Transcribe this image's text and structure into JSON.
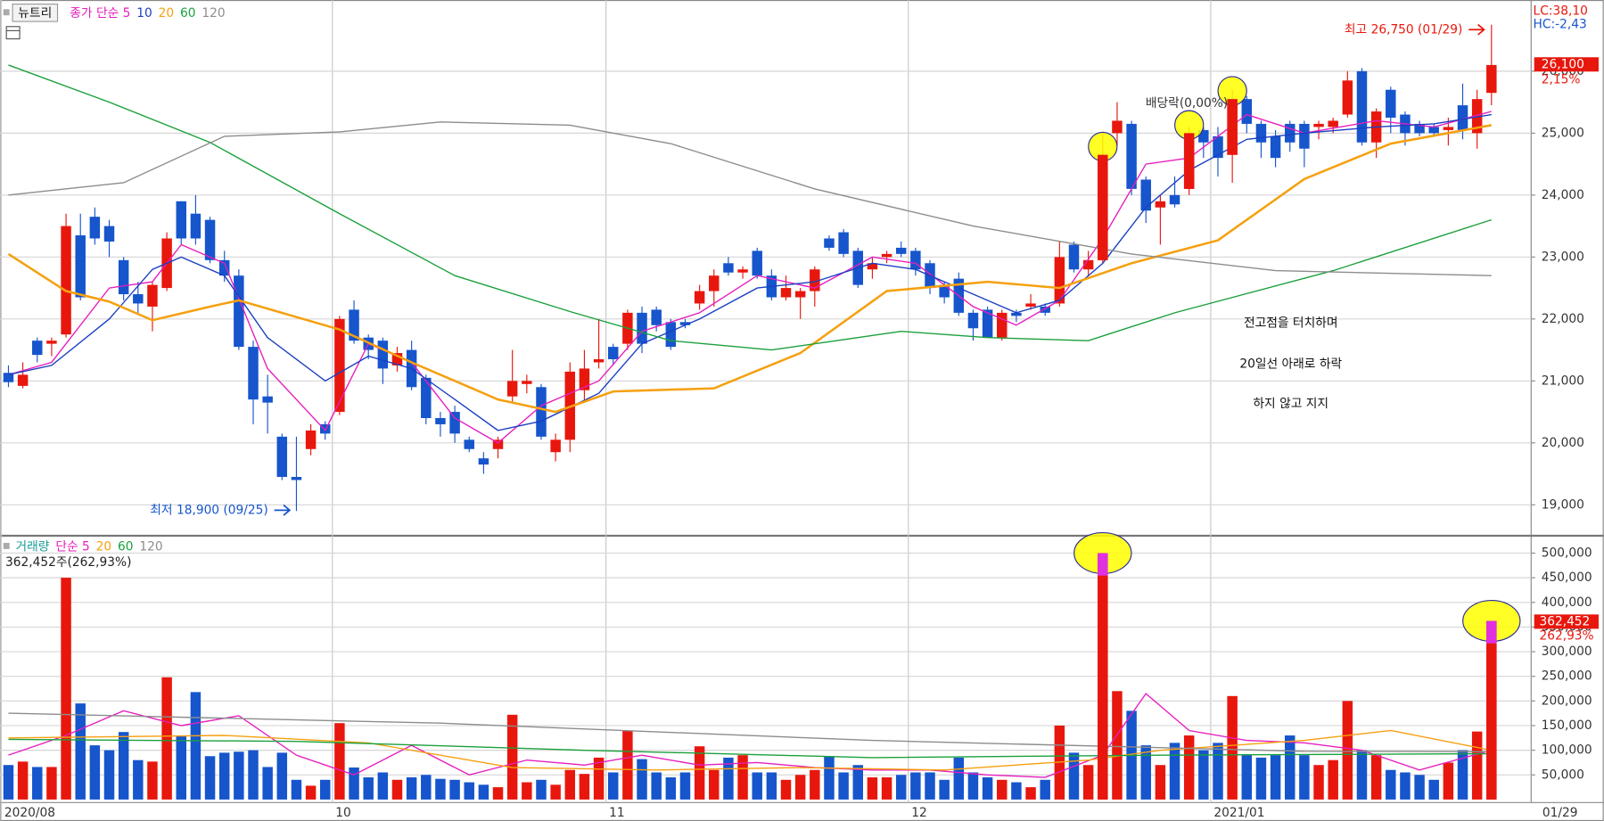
{
  "chart_data": [
    {
      "type": "candlestick",
      "legend_title": "뉴트리",
      "up_color": "#e8170d",
      "down_color": "#1655cc",
      "open": [
        21130,
        20920,
        21650,
        21600,
        21750,
        23350,
        23650,
        23500,
        22950,
        22400,
        22200,
        22500,
        23900,
        23700,
        23600,
        22950,
        22700,
        21550,
        20750,
        20100,
        19450,
        19900,
        20300,
        20500,
        22150,
        21700,
        21650,
        21250,
        21500,
        21050,
        20400,
        20500,
        20050,
        19750,
        19900,
        20750,
        20950,
        20900,
        19850,
        20050,
        20850,
        21300,
        21550,
        21600,
        22100,
        22150,
        21950,
        21950,
        22250,
        22450,
        22900,
        22750,
        23100,
        22700,
        22350,
        22350,
        22450,
        23300,
        23400,
        23100,
        22800,
        23000,
        23150,
        23100,
        22900,
        22550,
        22650,
        22100,
        22150,
        21700,
        22100,
        22200,
        22200,
        22250,
        23200,
        22800,
        22950,
        25000,
        25150,
        24250,
        23800,
        24000,
        24100,
        25050,
        24950,
        24650,
        25550,
        25150,
        24950,
        25150,
        25150,
        25100,
        25100,
        25300,
        26000,
        24850,
        25700,
        25300,
        25150,
        25100,
        25050,
        25450,
        25000,
        25650
      ],
      "high": [
        21250,
        21300,
        21700,
        21700,
        23700,
        23700,
        23800,
        23600,
        23000,
        22600,
        22600,
        23400,
        23900,
        24000,
        23650,
        23100,
        22800,
        21650,
        21100,
        20150,
        20100,
        20300,
        20350,
        22050,
        22300,
        21750,
        21700,
        21550,
        21650,
        21100,
        20500,
        20600,
        20100,
        19850,
        20100,
        21500,
        21100,
        20950,
        20150,
        21300,
        21500,
        22000,
        21600,
        22150,
        22200,
        22200,
        22000,
        22000,
        22550,
        22800,
        23000,
        22850,
        23150,
        22800,
        22700,
        22500,
        22850,
        23350,
        23450,
        23150,
        23000,
        23100,
        23250,
        23150,
        22950,
        22600,
        22750,
        22150,
        22200,
        22150,
        22150,
        22400,
        22250,
        23250,
        23250,
        23100,
        25000,
        25500,
        25200,
        24300,
        24000,
        24300,
        25100,
        25100,
        25100,
        25700,
        25600,
        25200,
        25050,
        25200,
        25200,
        25200,
        25250,
        26000,
        26050,
        25400,
        25750,
        25350,
        25200,
        25150,
        25250,
        25800,
        25700,
        26750
      ],
      "low": [
        20900,
        20880,
        21300,
        21400,
        21700,
        22300,
        23200,
        23000,
        22300,
        22100,
        21800,
        22450,
        23200,
        23200,
        22900,
        22600,
        21500,
        20300,
        20150,
        19400,
        18900,
        19800,
        20050,
        20450,
        21600,
        21350,
        20950,
        21150,
        20850,
        20300,
        20100,
        20000,
        19850,
        19500,
        19750,
        20650,
        20800,
        20050,
        19700,
        19850,
        20650,
        21200,
        21250,
        21500,
        21450,
        21800,
        21500,
        21850,
        22150,
        22200,
        22700,
        22650,
        22650,
        22300,
        22300,
        22000,
        22200,
        23100,
        23000,
        22500,
        22650,
        22900,
        23000,
        22700,
        22400,
        22250,
        22050,
        21650,
        21700,
        21650,
        21950,
        22150,
        22050,
        22200,
        22750,
        22700,
        22900,
        24800,
        24000,
        23550,
        23200,
        23800,
        24000,
        24600,
        24300,
        24200,
        25000,
        24600,
        24450,
        24700,
        24450,
        24900,
        25000,
        25250,
        24800,
        24600,
        25000,
        24800,
        24950,
        24950,
        24800,
        24900,
        24750,
        25450
      ],
      "close": [
        20980,
        21100,
        21420,
        21650,
        23500,
        22350,
        23300,
        23250,
        22400,
        22250,
        22550,
        23300,
        23300,
        23300,
        22950,
        22700,
        21550,
        20700,
        20650,
        19450,
        19400,
        20200,
        20150,
        22000,
        21650,
        21500,
        21200,
        21450,
        20900,
        20400,
        20300,
        20150,
        19900,
        19650,
        20050,
        21000,
        21000,
        20100,
        20050,
        21150,
        21200,
        21350,
        21350,
        22100,
        21600,
        21900,
        21550,
        21900,
        22450,
        22700,
        22750,
        22800,
        22700,
        22350,
        22500,
        22450,
        22800,
        23150,
        23050,
        22550,
        22900,
        23050,
        23050,
        22800,
        22500,
        22350,
        22100,
        21850,
        21700,
        22100,
        22050,
        22250,
        22100,
        23000,
        22800,
        22950,
        24650,
        25200,
        24100,
        23750,
        23900,
        23850,
        25000,
        24850,
        24600,
        25550,
        25150,
        24850,
        24600,
        24850,
        24750,
        25150,
        25200,
        25850,
        24850,
        25350,
        25250,
        25000,
        25000,
        25000,
        25100,
        25050,
        25550,
        26100
      ],
      "series": [
        {
          "name": "종가 단순 5",
          "color": "#e61ebe",
          "x": [
            0,
            3,
            7,
            10,
            12,
            15,
            18,
            22,
            25,
            28,
            31,
            34,
            37,
            41,
            44,
            48,
            52,
            56,
            60,
            63,
            67,
            70,
            73,
            76,
            79,
            82,
            86,
            90,
            95,
            99,
            103
          ],
          "values": [
            21100,
            21300,
            22500,
            22600,
            23200,
            22900,
            21200,
            20200,
            21600,
            21300,
            20400,
            20000,
            20600,
            21000,
            21800,
            22100,
            22700,
            22500,
            23000,
            22900,
            22200,
            21900,
            22300,
            23300,
            24500,
            24600,
            25300,
            25000,
            25200,
            25100,
            25350
          ]
        },
        {
          "name": "10",
          "color": "#1a3fc2",
          "x": [
            0,
            3,
            7,
            10,
            12,
            15,
            18,
            22,
            25,
            28,
            31,
            34,
            37,
            41,
            44,
            48,
            52,
            56,
            60,
            63,
            67,
            70,
            73,
            76,
            79,
            82,
            86,
            90,
            95,
            99,
            103
          ],
          "values": [
            21100,
            21250,
            22000,
            22800,
            23000,
            22700,
            21700,
            21000,
            21400,
            21200,
            20700,
            20200,
            20350,
            20800,
            21600,
            22000,
            22500,
            22600,
            22900,
            22800,
            22400,
            22100,
            22300,
            22900,
            23800,
            24400,
            24900,
            25000,
            25100,
            25150,
            25300
          ]
        },
        {
          "name": "20",
          "color": "#f5a00f",
          "x": [
            0,
            4,
            7,
            10,
            14,
            16,
            23,
            28,
            34,
            38,
            42,
            49,
            55,
            61,
            68,
            73,
            78,
            84,
            90,
            96,
            103
          ],
          "values": [
            23050,
            22450,
            22280,
            21980,
            22200,
            22300,
            21830,
            21300,
            20700,
            20500,
            20830,
            20880,
            21450,
            22450,
            22600,
            22500,
            22900,
            23270,
            24260,
            24830,
            25130
          ]
        },
        {
          "name": "60",
          "color": "#1aa03c",
          "x": [
            0,
            7,
            14,
            23,
            31,
            39,
            46,
            53,
            62,
            68,
            75,
            81,
            92,
            103
          ],
          "values": [
            26100,
            25500,
            24850,
            23700,
            22700,
            22120,
            21650,
            21500,
            21800,
            21700,
            21650,
            22100,
            22780,
            23600
          ]
        },
        {
          "name": "120",
          "color": "#8c8c8c",
          "x": [
            0,
            8,
            15,
            23,
            30,
            39,
            46,
            56,
            67,
            78,
            88,
            103
          ],
          "values": [
            24000,
            24200,
            24950,
            25020,
            25180,
            25130,
            24830,
            24100,
            23500,
            23050,
            22780,
            22700
          ]
        }
      ],
      "ylim": [
        18550,
        27100
      ],
      "yticks": [
        {
          "value": 19000,
          "label": "19,000"
        },
        {
          "value": 20000,
          "label": "20,000"
        },
        {
          "value": 21000,
          "label": "21,000"
        },
        {
          "value": 22000,
          "label": "22,000"
        },
        {
          "value": 23000,
          "label": "23,000"
        },
        {
          "value": 24000,
          "label": "24,000"
        },
        {
          "value": 25000,
          "label": "25,000"
        },
        {
          "value": 26000,
          "label": "26,000"
        }
      ],
      "grid": true,
      "highlights": [
        76,
        82,
        85
      ],
      "annotations": [
        "최고 26,750 (01/29)",
        "최저 18,900 (09/25)",
        "배당락(0,00%)",
        "전고점을 터치하며",
        "20일선 아래로 하락",
        "하지 않고 지지"
      ],
      "side_labels": [
        "LC:38,10",
        "HC:-2,43",
        "26,100",
        "2,15%"
      ]
    },
    {
      "type": "bar",
      "name": "거래량",
      "name_color": "#1a9c9c",
      "values": [
        70000,
        77000,
        66000,
        66000,
        450000,
        195000,
        110000,
        100000,
        137000,
        80000,
        77000,
        248000,
        130000,
        218000,
        88000,
        95000,
        97000,
        100000,
        66000,
        95000,
        40000,
        28000,
        40000,
        155000,
        65000,
        45000,
        55000,
        40000,
        45000,
        50000,
        42000,
        40000,
        35000,
        30000,
        25000,
        172000,
        35000,
        40000,
        30000,
        60000,
        52000,
        85000,
        55000,
        140000,
        82000,
        55000,
        45000,
        55000,
        108000,
        60000,
        85000,
        90000,
        55000,
        55000,
        40000,
        50000,
        60000,
        88000,
        55000,
        70000,
        45000,
        45000,
        50000,
        55000,
        55000,
        40000,
        85000,
        55000,
        45000,
        40000,
        35000,
        25000,
        40000,
        150000,
        95000,
        70000,
        500000,
        220000,
        180000,
        110000,
        70000,
        115000,
        130000,
        100000,
        115000,
        210000,
        90000,
        85000,
        90000,
        130000,
        90000,
        70000,
        80000,
        200000,
        100000,
        90000,
        60000,
        55000,
        50000,
        40000,
        75000,
        100000,
        138000,
        362452
      ],
      "series": [
        {
          "name": "단순 5",
          "color": "#e61ebe",
          "x": [
            0,
            4,
            8,
            12,
            16,
            20,
            24,
            28,
            32,
            36,
            40,
            44,
            48,
            52,
            56,
            60,
            64,
            68,
            72,
            76,
            79,
            82,
            86,
            90,
            94,
            98,
            103
          ],
          "values": [
            90000,
            130000,
            180000,
            150000,
            170000,
            90000,
            50000,
            110000,
            50000,
            80000,
            70000,
            90000,
            70000,
            75000,
            65000,
            60000,
            60000,
            50000,
            45000,
            90000,
            215000,
            140000,
            120000,
            115000,
            100000,
            60000,
            100000
          ]
        },
        {
          "name": "20",
          "color": "#f5a00f",
          "x": [
            0,
            15,
            25,
            35,
            45,
            55,
            65,
            75,
            80,
            90,
            96,
            103
          ],
          "values": [
            125000,
            130000,
            115000,
            65000,
            60000,
            65000,
            60000,
            80000,
            100000,
            120000,
            140000,
            100000
          ]
        },
        {
          "name": "60",
          "color": "#1aa03c",
          "x": [
            0,
            20,
            40,
            60,
            80,
            103
          ],
          "values": [
            122000,
            118000,
            100000,
            85000,
            90000,
            93000
          ]
        },
        {
          "name": "120",
          "color": "#8c8c8c",
          "x": [
            0,
            30,
            60,
            90,
            103
          ],
          "values": [
            175000,
            155000,
            120000,
            98000,
            97000
          ]
        }
      ],
      "ylim": [
        0,
        529000
      ],
      "yticks": [
        {
          "value": 50000,
          "label": "50,000"
        },
        {
          "value": 100000,
          "label": "100,000"
        },
        {
          "value": 150000,
          "label": "150,000"
        },
        {
          "value": 200000,
          "label": "200,000"
        },
        {
          "value": 250000,
          "label": "250,000"
        },
        {
          "value": 300000,
          "label": "300,000"
        },
        {
          "value": 350000,
          "label": "350,000"
        },
        {
          "value": 400000,
          "label": "400,000"
        },
        {
          "value": 450000,
          "label": "450,000"
        },
        {
          "value": 500000,
          "label": "500,000"
        }
      ],
      "grid": true,
      "highlights": [
        76,
        103
      ],
      "info_label": "362,452주(262,93%)",
      "side_labels": [
        "362,452",
        "262,93%"
      ],
      "x_labels": [
        "2020/08",
        "10",
        "11",
        "12",
        "2021/01",
        "01/29"
      ],
      "x_label_index": [
        0,
        23,
        42,
        63,
        84,
        103
      ]
    }
  ]
}
